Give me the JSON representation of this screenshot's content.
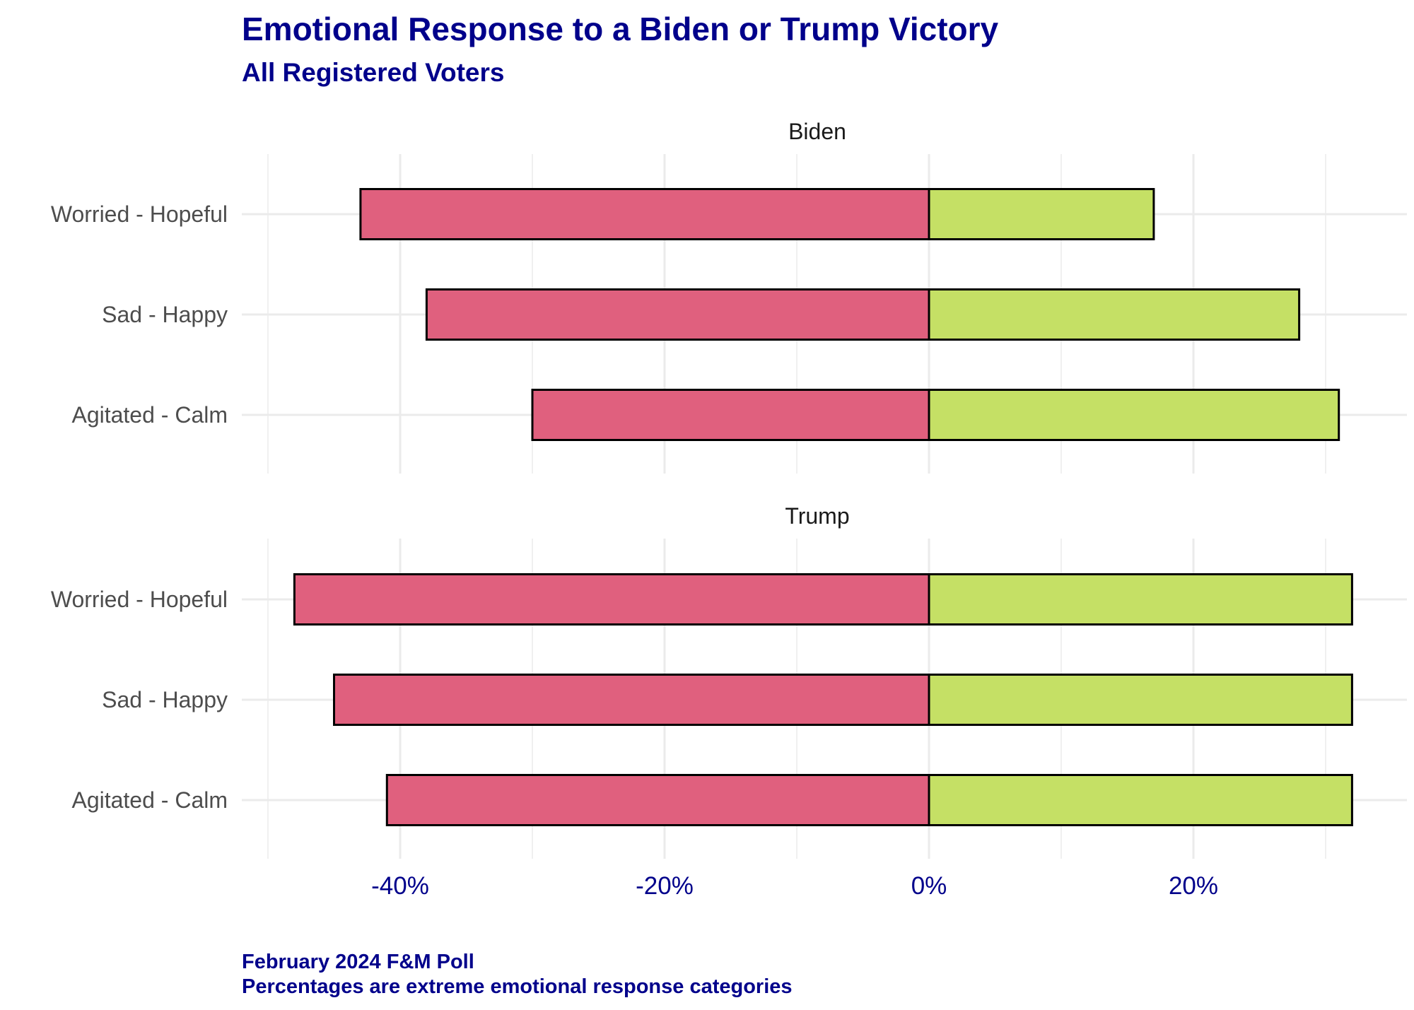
{
  "title": "Emotional Response to a Biden or Trump Victory",
  "subtitle": "All Registered Voters",
  "caption": [
    "February 2024 F&M Poll",
    "Percentages are extreme emotional response categories"
  ],
  "colors": {
    "negative": "#E0607E",
    "positive": "#C5E065",
    "title": "#00008B",
    "grid": "#EBEBEB"
  },
  "chart_data": {
    "type": "bar",
    "orientation": "horizontal",
    "stacked": "diverging",
    "xlim": [
      -50,
      32
    ],
    "x_ticks": [
      -40,
      -20,
      0,
      20
    ],
    "x_tick_labels": [
      "-40%",
      "-20%",
      "0%",
      "20%"
    ],
    "grid": true,
    "categories": [
      "Worried - Hopeful",
      "Sad - Happy",
      "Agitated - Calm"
    ],
    "panels": [
      {
        "name": "Biden",
        "negative": [
          -43,
          -38,
          -30
        ],
        "positive": [
          17,
          28,
          31
        ]
      },
      {
        "name": "Trump",
        "negative": [
          -48,
          -45,
          -41
        ],
        "positive": [
          32,
          32,
          32
        ]
      }
    ]
  }
}
